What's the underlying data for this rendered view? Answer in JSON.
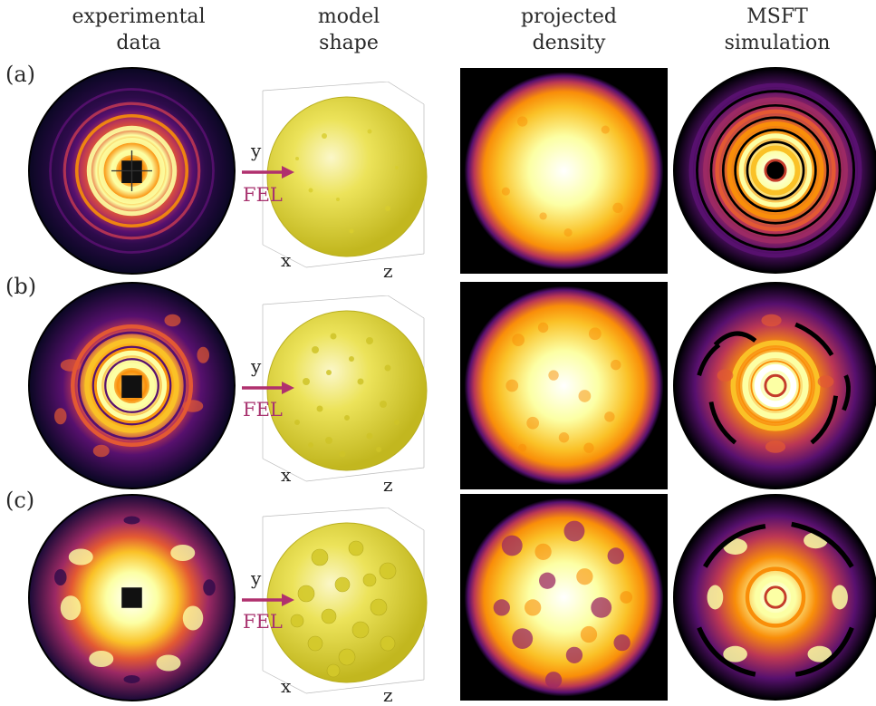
{
  "headers": [
    {
      "line1": "experimental",
      "line2": "data"
    },
    {
      "line1": "model",
      "line2": "shape"
    },
    {
      "line1": "projected",
      "line2": "density"
    },
    {
      "line1": "MSFT",
      "line2": "simulation"
    }
  ],
  "rows": [
    {
      "label": "(a)"
    },
    {
      "label": "(b)"
    },
    {
      "label": "(c)"
    }
  ],
  "model_axes": {
    "y": "y",
    "x": "x",
    "z": "z",
    "beam": "FEL"
  },
  "colors": {
    "beam_arrow": "#b0306e",
    "sphere": "#e6dd3a",
    "inferno_bright": "#fcffa4",
    "inferno_mid": "#f98e09",
    "inferno_dark": "#57106e"
  }
}
